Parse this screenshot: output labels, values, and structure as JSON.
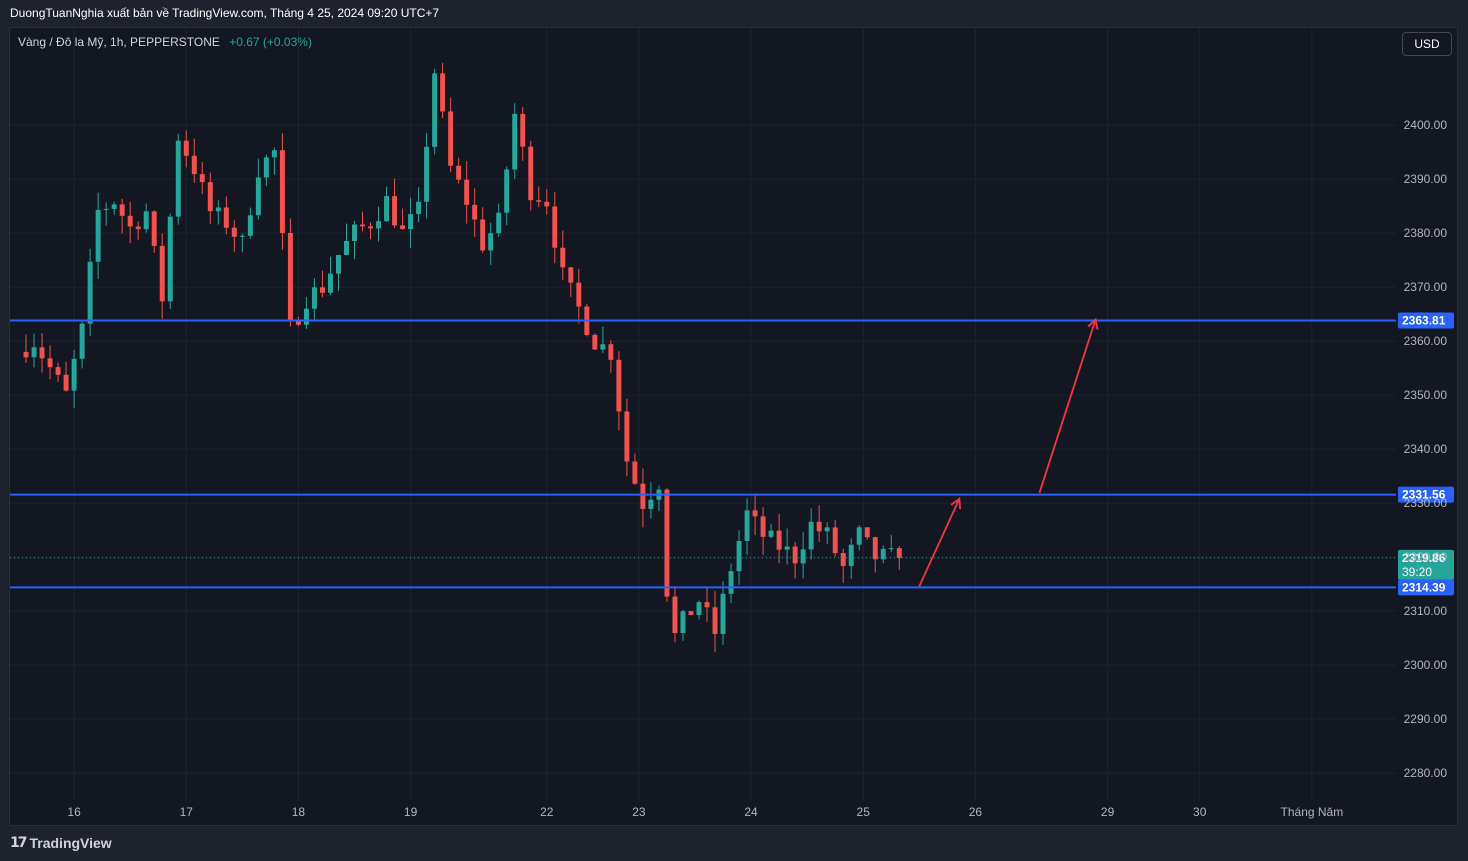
{
  "header": {
    "published_by": "DuongTuanNghia xuất bản về TradingView.com, Tháng 4 25, 2024 09:20 UTC+7"
  },
  "legend": {
    "symbol": "Vàng / Đô la Mỹ, 1h, PEPPERSTONE",
    "change": "+0.67 (+0.03%)"
  },
  "currency_button": "USD",
  "footer": {
    "brand": "TradingView",
    "logo_glyph": "17"
  },
  "colors": {
    "background": "#131722",
    "up": "#26a69a",
    "down": "#ef5350",
    "level_line": "#2962ff",
    "arrow": "#f23645",
    "grid": "#1f2330"
  },
  "chart_data": {
    "type": "candlestick",
    "symbol": "XAUUSD",
    "interval": "1h",
    "ylim": [
      2275,
      2418
    ],
    "y_ticks": [
      2280,
      2290,
      2300,
      2310,
      2320,
      2330,
      2340,
      2350,
      2360,
      2370,
      2380,
      2390,
      2400
    ],
    "y_tick_labels": [
      "2280.00",
      "2290.00",
      "2300.00",
      "2310.00",
      "2320.00",
      "2330.00",
      "2340.00",
      "2350.00",
      "2360.00",
      "2370.00",
      "2380.00",
      "2390.00",
      "2400.00"
    ],
    "x_ticks": [
      {
        "label": "16",
        "bar": 6
      },
      {
        "label": "17",
        "bar": 20
      },
      {
        "label": "18",
        "bar": 34
      },
      {
        "label": "19",
        "bar": 48
      },
      {
        "label": "22",
        "bar": 65
      },
      {
        "label": "23",
        "bar": 76.5
      },
      {
        "label": "24",
        "bar": 90.5
      },
      {
        "label": "25",
        "bar": 104.5
      },
      {
        "label": "26",
        "bar": 118.5
      },
      {
        "label": "29",
        "bar": 135
      },
      {
        "label": "30",
        "bar": 146.5
      },
      {
        "label": "Tháng Năm",
        "bar": 160.5
      }
    ],
    "x_range": [
      -2,
      171
    ],
    "horizontal_levels": [
      {
        "value": 2363.81,
        "label": "2363.81"
      },
      {
        "value": 2331.56,
        "label": "2331.56"
      },
      {
        "value": 2314.39,
        "label": "2314.39"
      }
    ],
    "last_price": {
      "value": 2319.86,
      "label": "2319.86",
      "countdown": "39:20"
    },
    "arrows": [
      {
        "from": [
          111.5,
          2314.6
        ],
        "to": [
          116.5,
          2330.8
        ]
      },
      {
        "from": [
          126.5,
          2331.9
        ],
        "to": [
          133.5,
          2364.0
        ]
      }
    ],
    "price_path": [
      [
        0,
        2358
      ],
      [
        2,
        2360
      ],
      [
        4,
        2355
      ],
      [
        6,
        2350
      ],
      [
        8,
        2362
      ],
      [
        10,
        2384
      ],
      [
        12,
        2386
      ],
      [
        14,
        2381
      ],
      [
        16,
        2384
      ],
      [
        18,
        2368
      ],
      [
        20,
        2398
      ],
      [
        22,
        2392
      ],
      [
        24,
        2384
      ],
      [
        26,
        2382
      ],
      [
        28,
        2378
      ],
      [
        30,
        2392
      ],
      [
        32,
        2395
      ],
      [
        34,
        2362
      ],
      [
        36,
        2368
      ],
      [
        38,
        2370
      ],
      [
        40,
        2376
      ],
      [
        42,
        2380
      ],
      [
        44,
        2382
      ],
      [
        46,
        2386
      ],
      [
        48,
        2380
      ],
      [
        50,
        2384
      ],
      [
        52,
        2410
      ],
      [
        54,
        2392
      ],
      [
        56,
        2386
      ],
      [
        58,
        2378
      ],
      [
        60,
        2382
      ],
      [
        62,
        2402
      ],
      [
        64,
        2388
      ],
      [
        66,
        2386
      ],
      [
        68,
        2372
      ],
      [
        70,
        2366
      ],
      [
        72,
        2360
      ],
      [
        74,
        2358
      ],
      [
        76,
        2338
      ],
      [
        78,
        2330
      ],
      [
        80,
        2334
      ],
      [
        81.5,
        2304
      ],
      [
        83,
        2308
      ],
      [
        85,
        2312
      ],
      [
        87,
        2306
      ],
      [
        89,
        2318
      ],
      [
        91,
        2328
      ],
      [
        93,
        2324
      ],
      [
        95,
        2322
      ],
      [
        97,
        2320
      ],
      [
        99,
        2326
      ],
      [
        101,
        2324
      ],
      [
        103,
        2318
      ],
      [
        105,
        2324
      ],
      [
        107,
        2320
      ],
      [
        109,
        2319.86
      ]
    ]
  }
}
